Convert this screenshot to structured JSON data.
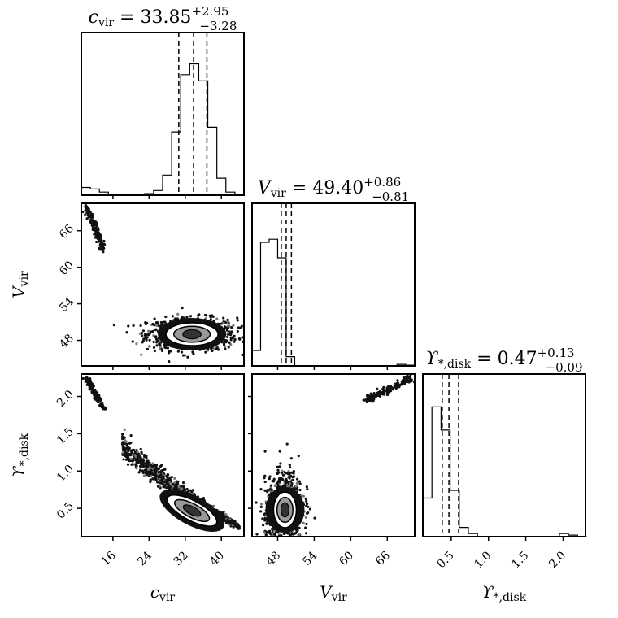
{
  "chart_data": {
    "type": "corner",
    "parameters": [
      {
        "symbol": "c",
        "sub": "vir",
        "median": "33.85",
        "plus": "+2.95",
        "minus": "−3.28",
        "axis_label": "c",
        "axis_sub": "vir",
        "ticks": [
          "16",
          "24",
          "32",
          "40"
        ],
        "range": [
          9,
          45
        ]
      },
      {
        "symbol": "V",
        "sub": "vir",
        "median": "49.40",
        "plus": "+0.86",
        "minus": "−0.81",
        "axis_label": "V",
        "axis_sub": "vir",
        "ticks": [
          "48",
          "54",
          "60",
          "66"
        ],
        "range": [
          43.8,
          70.5
        ]
      },
      {
        "symbol": "ϒ",
        "sub": "*,disk",
        "median": "0.47",
        "plus": "+0.13",
        "minus": "−0.09",
        "axis_label": "ϒ",
        "axis_sub": "*,disk",
        "ticks": [
          "0.5",
          "1.0",
          "1.5",
          "2.0"
        ],
        "range": [
          0.12,
          2.3
        ]
      }
    ],
    "hist": [
      {
        "edges": [
          9,
          11,
          13,
          15,
          17,
          19,
          21,
          23,
          25,
          27,
          29,
          31,
          33,
          35,
          37,
          39,
          41,
          43,
          45
        ],
        "counts": [
          0.05,
          0.04,
          0.02,
          0,
          0,
          0,
          0,
          0.01,
          0.03,
          0.13,
          0.41,
          0.78,
          0.85,
          0.74,
          0.44,
          0.11,
          0.02,
          0
        ],
        "quantiles": [
          30.57,
          33.85,
          36.8
        ]
      },
      {
        "edges": [
          43.8,
          45.2,
          46.6,
          48.0,
          49.4,
          50.8,
          52.2,
          53.6,
          55.0,
          56.4,
          57.8,
          59.2,
          60.6,
          62.0,
          63.4,
          64.8,
          66.2,
          67.6,
          69.0,
          70.4
        ],
        "counts": [
          0.1,
          0.8,
          0.82,
          0.7,
          0.06,
          0,
          0,
          0,
          0,
          0,
          0,
          0,
          0,
          0,
          0,
          0,
          0,
          0.01,
          0.005
        ],
        "quantiles": [
          48.59,
          49.4,
          50.26
        ]
      },
      {
        "edges": [
          0.12,
          0.242,
          0.364,
          0.486,
          0.608,
          0.73,
          0.852,
          0.974,
          1.096,
          1.218,
          1.34,
          1.462,
          1.584,
          1.706,
          1.828,
          1.95,
          2.072,
          2.194,
          2.316
        ],
        "counts": [
          0.25,
          0.84,
          0.69,
          0.3,
          0.06,
          0.02,
          0,
          0,
          0,
          0,
          0,
          0,
          0,
          0,
          0,
          0.02,
          0.01,
          0
        ],
        "quantiles": [
          0.38,
          0.47,
          0.6
        ]
      }
    ],
    "scatter_2d": [
      {
        "x": 1,
        "y": 0,
        "main_cluster": {
          "cx": 33.5,
          "cy": 49.0,
          "sx": 4.5,
          "sy": 1.2
        },
        "minor_cluster": {
          "x_range": [
            10,
            14
          ],
          "y_range": [
            63,
            70
          ]
        }
      },
      {
        "x": 2,
        "y": 0,
        "main_cluster": {
          "x_range": [
            18,
            44
          ],
          "y_range": [
            0.25,
            1.35
          ],
          "slope_dir": "negative"
        },
        "minor_cluster": {
          "x_range": [
            10,
            14
          ],
          "y_range": [
            1.85,
            2.25
          ]
        }
      },
      {
        "x": 2,
        "y": 1,
        "main_cluster": {
          "cx": 49.0,
          "cy": 0.48,
          "sx": 1.4,
          "sy": 0.22
        },
        "minor_cluster": {
          "x_range": [
            62.5,
            70
          ],
          "y_range": [
            1.95,
            2.25
          ]
        }
      }
    ]
  }
}
